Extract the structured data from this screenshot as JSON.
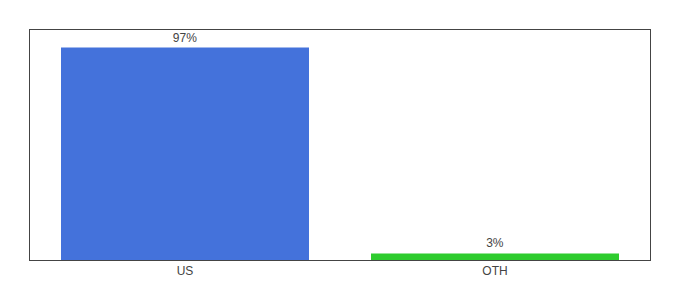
{
  "chart_data": {
    "type": "bar",
    "categories": [
      "US",
      "OTH"
    ],
    "values": [
      97,
      3
    ],
    "value_labels": [
      "97%",
      "3%"
    ],
    "colors": [
      "#4472db",
      "#2ecc2e"
    ],
    "ylim": [
      0,
      105
    ],
    "data_labels": true,
    "tick_labels": "x",
    "grid": false
  }
}
